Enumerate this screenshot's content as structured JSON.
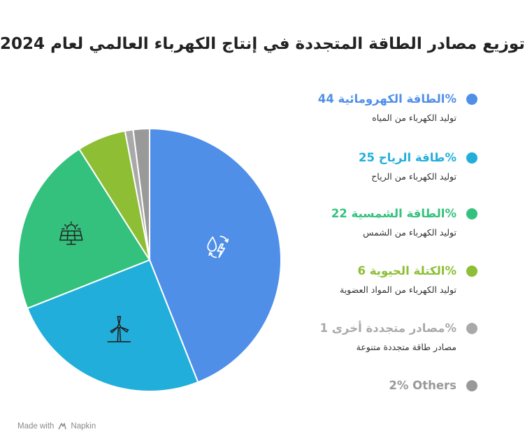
{
  "chart_data": {
    "type": "pie",
    "title": "توزيع مصادر الطاقة المتجددة في إنتاج الكهرباء العالمي لعام 2024",
    "slices": [
      {
        "label": "الطاقة الكهرومائية",
        "value": 44,
        "display": "الطاقة الكهرومائية 44%",
        "description": "توليد الكهرباء من المياه",
        "color": "#4F8FE8",
        "icon": "hydro-icon"
      },
      {
        "label": "طاقة الرياح",
        "value": 25,
        "display": "طاقة الرياح 25%",
        "description": "توليد الكهرباء من الرياح",
        "color": "#22AEDB",
        "icon": "wind-turbine-icon"
      },
      {
        "label": "الطاقة الشمسية",
        "value": 22,
        "display": "الطاقة الشمسية 22%",
        "description": "توليد الكهرباء من الشمس",
        "color": "#34C17D",
        "icon": "solar-panel-icon"
      },
      {
        "label": "الكتلة الحيوية",
        "value": 6,
        "display": "الكتلة الحيوية 6%",
        "description": "توليد الكهرباء من المواد العضوية",
        "color": "#8DBE34",
        "icon": ""
      },
      {
        "label": "مصادر متجددة أخرى",
        "value": 1,
        "display": "مصادر متجددة أخرى 1%",
        "description": "مصادر طاقة متجددة متنوعة",
        "color": "#A9A9A9",
        "icon": ""
      },
      {
        "label": "Others",
        "value": 2,
        "display": "2% Others",
        "description": "",
        "color": "#999999",
        "icon": ""
      }
    ],
    "legend_position": "right"
  },
  "footer": {
    "made_with": "Made with",
    "brand": "Napkin"
  }
}
